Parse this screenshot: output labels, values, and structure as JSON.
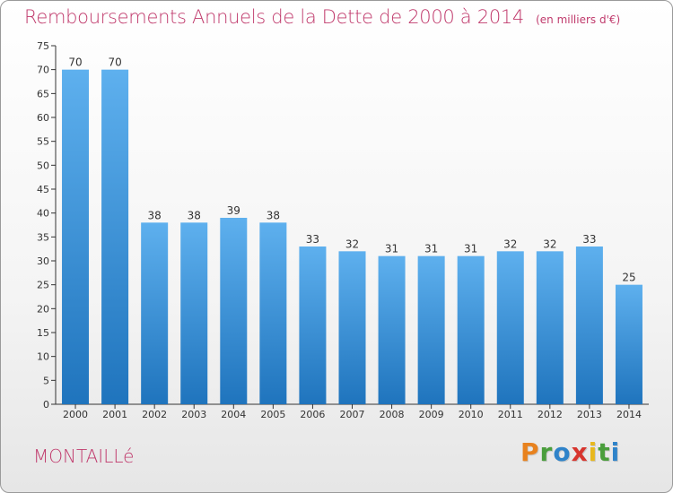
{
  "chart_data": {
    "type": "bar",
    "title": "Remboursements Annuels de la Dette de 2000 à 2014",
    "subtitle": "(en milliers d'€)",
    "categories": [
      "2000",
      "2001",
      "2002",
      "2003",
      "2004",
      "2005",
      "2006",
      "2007",
      "2008",
      "2009",
      "2010",
      "2011",
      "2012",
      "2013",
      "2014"
    ],
    "values": [
      70,
      70,
      38,
      38,
      39,
      38,
      33,
      32,
      31,
      31,
      31,
      32,
      32,
      33,
      25
    ],
    "ylim": [
      0,
      75
    ],
    "yticks": [
      0,
      5,
      10,
      15,
      20,
      25,
      30,
      35,
      40,
      45,
      50,
      55,
      60,
      65,
      70,
      75
    ],
    "grid": false,
    "data_labels": true,
    "bar_color": "#3d8fd6"
  },
  "footer": {
    "commune": "MONTAILLé",
    "brand_letters": [
      {
        "char": "P",
        "color": "#e8821e"
      },
      {
        "char": "r",
        "color": "#4a9e3c"
      },
      {
        "char": "o",
        "color": "#2f83c9"
      },
      {
        "char": "x",
        "color": "#d7352e"
      },
      {
        "char": "i",
        "color": "#e8b81e"
      },
      {
        "char": "t",
        "color": "#4a9e3c"
      },
      {
        "char": "i",
        "color": "#2f83c9"
      }
    ]
  },
  "colors": {
    "title": "#c03a6c",
    "axis": "#333333"
  }
}
